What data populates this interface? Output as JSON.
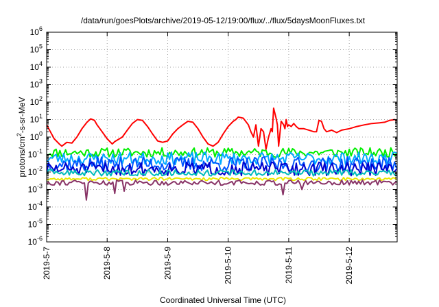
{
  "chart_data": {
    "type": "line",
    "title": "/data/run/goesPlots/archive/2019-05-12/19:00/flux/../flux/5daysMoonFluxes.txt",
    "xlabel": "Coordinated Universal Time (UTC)",
    "ylabel": {
      "pre": "protons/cm",
      "sup": "2",
      "post": "-s-sr-MeV"
    },
    "x_scale": "time",
    "y_scale": "log",
    "xlim": [
      "2019-05-07T00:00",
      "2019-05-12T19:00"
    ],
    "ylim": [
      1e-06,
      1000000
    ],
    "grid": true,
    "x_ticks": [
      {
        "value": "2019-05-07T00:00",
        "label": "2019-5-7"
      },
      {
        "value": "2019-05-08T00:00",
        "label": "2019-5-8"
      },
      {
        "value": "2019-05-09T00:00",
        "label": "2019-5-9"
      },
      {
        "value": "2019-05-10T00:00",
        "label": "2019-5-10"
      },
      {
        "value": "2019-05-11T00:00",
        "label": "2019-5-11"
      },
      {
        "value": "2019-05-12T00:00",
        "label": "2019-5-12"
      }
    ],
    "y_ticks": [
      {
        "value": 1e-06,
        "base": "10",
        "exp": "-6"
      },
      {
        "value": 1e-05,
        "base": "10",
        "exp": "-5"
      },
      {
        "value": 0.0001,
        "base": "10",
        "exp": "-4"
      },
      {
        "value": 0.001,
        "base": "10",
        "exp": "-3"
      },
      {
        "value": 0.01,
        "base": "10",
        "exp": "-2"
      },
      {
        "value": 0.1,
        "base": "10",
        "exp": "-1"
      },
      {
        "value": 1,
        "base": "10",
        "exp": "0"
      },
      {
        "value": 10,
        "base": "10",
        "exp": "1"
      },
      {
        "value": 100,
        "base": "10",
        "exp": "2"
      },
      {
        "value": 1000,
        "base": "10",
        "exp": "3"
      },
      {
        "value": 10000,
        "base": "10",
        "exp": "4"
      },
      {
        "value": 100000,
        "base": "10",
        "exp": "5"
      },
      {
        "value": 1000000,
        "base": "10",
        "exp": "6"
      }
    ],
    "series": [
      {
        "color": "#ff0000",
        "points": [
          [
            "2019-05-07T00:00",
            5
          ],
          [
            "2019-05-07T01:30",
            2
          ],
          [
            "2019-05-07T03:00",
            0.8
          ],
          [
            "2019-05-07T05:00",
            0.4
          ],
          [
            "2019-05-07T06:00",
            0.3
          ],
          [
            "2019-05-07T08:00",
            0.5
          ],
          [
            "2019-05-07T10:00",
            0.45
          ],
          [
            "2019-05-07T12:00",
            1
          ],
          [
            "2019-05-07T14:00",
            3
          ],
          [
            "2019-05-07T16:00",
            7
          ],
          [
            "2019-05-07T17:30",
            11
          ],
          [
            "2019-05-07T19:00",
            9
          ],
          [
            "2019-05-07T20:00",
            5
          ],
          [
            "2019-05-07T22:00",
            2
          ],
          [
            "2019-05-08T00:00",
            0.8
          ],
          [
            "2019-05-08T02:00",
            0.4
          ],
          [
            "2019-05-08T03:00",
            0.55
          ],
          [
            "2019-05-08T06:00",
            1
          ],
          [
            "2019-05-08T08:00",
            2.5
          ],
          [
            "2019-05-08T10:00",
            6
          ],
          [
            "2019-05-08T12:00",
            10
          ],
          [
            "2019-05-08T14:00",
            9
          ],
          [
            "2019-05-08T16:00",
            4
          ],
          [
            "2019-05-08T18:00",
            1.5
          ],
          [
            "2019-05-08T20:00",
            0.6
          ],
          [
            "2019-05-08T22:00",
            0.5
          ],
          [
            "2019-05-09T00:00",
            0.6
          ],
          [
            "2019-05-09T02:00",
            1.5
          ],
          [
            "2019-05-09T04:00",
            3
          ],
          [
            "2019-05-09T06:00",
            5
          ],
          [
            "2019-05-09T08:00",
            8
          ],
          [
            "2019-05-09T10:00",
            7
          ],
          [
            "2019-05-09T12:00",
            3
          ],
          [
            "2019-05-09T14:00",
            1
          ],
          [
            "2019-05-09T16:00",
            0.4
          ],
          [
            "2019-05-09T18:00",
            0.3
          ],
          [
            "2019-05-09T20:00",
            0.5
          ],
          [
            "2019-05-09T22:00",
            1.5
          ],
          [
            "2019-05-10T00:00",
            4
          ],
          [
            "2019-05-10T02:00",
            8
          ],
          [
            "2019-05-10T03:00",
            10
          ],
          [
            "2019-05-10T04:00",
            14
          ],
          [
            "2019-05-10T06:00",
            12
          ],
          [
            "2019-05-10T08:00",
            5
          ],
          [
            "2019-05-10T09:00",
            2
          ],
          [
            "2019-05-10T10:00",
            1
          ],
          [
            "2019-05-10T11:00",
            5
          ],
          [
            "2019-05-10T12:00",
            0.3
          ],
          [
            "2019-05-10T13:00",
            3
          ],
          [
            "2019-05-10T14:00",
            2
          ],
          [
            "2019-05-10T15:00",
            0.2
          ],
          [
            "2019-05-10T16:00",
            1
          ],
          [
            "2019-05-10T17:00",
            3
          ],
          [
            "2019-05-10T17:30",
            2
          ],
          [
            "2019-05-10T18:00",
            45
          ],
          [
            "2019-05-10T19:00",
            12
          ],
          [
            "2019-05-10T19:30",
            5
          ],
          [
            "2019-05-10T20:00",
            0.3
          ],
          [
            "2019-05-10T21:00",
            8
          ],
          [
            "2019-05-10T22:00",
            5
          ],
          [
            "2019-05-10T22:30",
            3
          ],
          [
            "2019-05-10T23:00",
            10
          ],
          [
            "2019-05-10T23:30",
            4
          ],
          [
            "2019-05-11T00:00",
            5
          ],
          [
            "2019-05-11T01:00",
            4
          ],
          [
            "2019-05-11T02:00",
            6
          ],
          [
            "2019-05-11T03:00",
            4
          ],
          [
            "2019-05-11T04:00",
            3
          ],
          [
            "2019-05-11T06:00",
            3
          ],
          [
            "2019-05-11T08:00",
            2.5
          ],
          [
            "2019-05-11T10:00",
            2
          ],
          [
            "2019-05-11T11:00",
            2
          ],
          [
            "2019-05-11T12:00",
            9
          ],
          [
            "2019-05-11T13:00",
            8
          ],
          [
            "2019-05-11T14:00",
            3
          ],
          [
            "2019-05-11T15:00",
            2
          ],
          [
            "2019-05-11T17:00",
            2.5
          ],
          [
            "2019-05-11T19:00",
            1.8
          ],
          [
            "2019-05-11T21:00",
            2.5
          ],
          [
            "2019-05-12T00:00",
            3
          ],
          [
            "2019-05-12T03:00",
            4
          ],
          [
            "2019-05-12T06:00",
            5
          ],
          [
            "2019-05-12T09:00",
            6
          ],
          [
            "2019-05-12T12:00",
            6.5
          ],
          [
            "2019-05-12T14:00",
            7
          ],
          [
            "2019-05-12T16:00",
            9
          ],
          [
            "2019-05-12T18:00",
            10
          ],
          [
            "2019-05-12T19:00",
            9
          ]
        ]
      },
      {
        "color": "#00ee00",
        "baseline": 0.13,
        "spread": 0.09,
        "seed": 11
      },
      {
        "color": "#00aaff",
        "baseline": 0.06,
        "spread": 0.12,
        "seed": 23
      },
      {
        "color": "#0055ff",
        "baseline": 0.028,
        "spread": 0.14,
        "seed": 37
      },
      {
        "color": "#0000cc",
        "baseline": 0.015,
        "spread": 0.13,
        "seed": 51
      },
      {
        "color": "#00bbbb",
        "baseline": 0.009,
        "spread": 0.06,
        "seed": 63
      },
      {
        "color": "#e8e800",
        "baseline": 0.004,
        "spread": 0.03,
        "seed": 77
      },
      {
        "color": "#883366",
        "baseline": 0.0025,
        "spread": 0.05,
        "seed": 91,
        "dips": [
          [
            "2019-05-07T15:30",
            0.00025
          ],
          [
            "2019-05-08T03:00",
            0.0006
          ],
          [
            "2019-05-08T06:30",
            0.0008
          ],
          [
            "2019-05-10T22:00",
            0.0005
          ],
          [
            "2019-05-11T05:00",
            0.001
          ]
        ]
      }
    ]
  }
}
